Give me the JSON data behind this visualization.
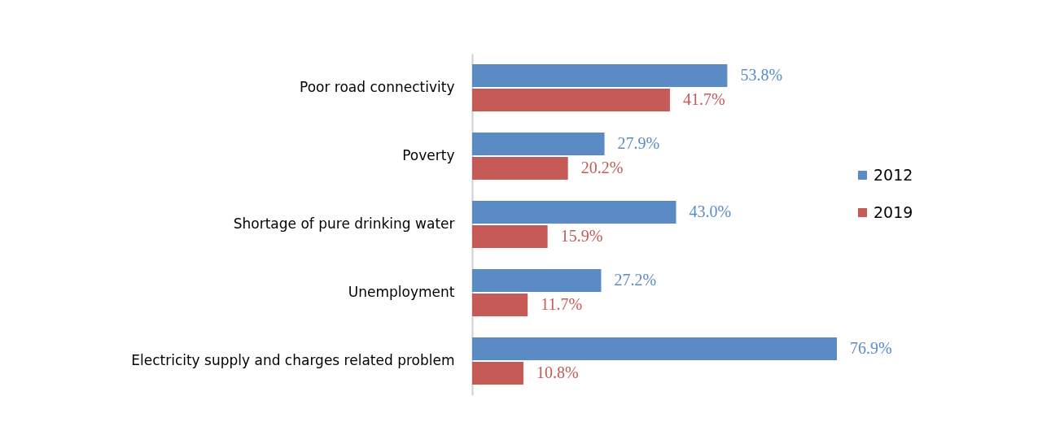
{
  "chart_data": {
    "type": "bar",
    "orientation": "horizontal",
    "categories": [
      "Poor road connectivity",
      "Poverty",
      "Shortage of pure drinking water",
      "Unemployment",
      "Electricity supply and charges related problem"
    ],
    "series": [
      {
        "name": "2012",
        "color": "#5b8bc5",
        "values": [
          53.8,
          27.9,
          43.0,
          27.2,
          76.9
        ],
        "value_labels": [
          "53.8%",
          "27.9%",
          "43.0%",
          "27.2%",
          "76.9%"
        ]
      },
      {
        "name": "2019",
        "color": "#c55a57",
        "values": [
          41.7,
          20.2,
          15.9,
          11.7,
          10.8
        ],
        "value_labels": [
          "41.7%",
          "20.2%",
          "15.9%",
          "11.7%",
          "10.8%"
        ]
      }
    ],
    "legend": "right",
    "grid": false
  }
}
